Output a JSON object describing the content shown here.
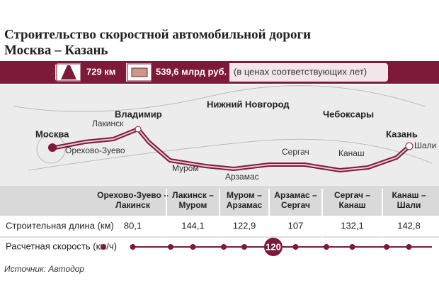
{
  "header": {
    "title": [
      "Строительство скоростной автомобильной дороги",
      "Москва – Казань"
    ]
  },
  "stats": {
    "length": "729 км",
    "cost": "539,6 млрд руб.",
    "cost_note": "(в ценах соответствующих лет)"
  },
  "map": {
    "cities": [
      "Москва",
      "Орехово-Зуево",
      "Лакинск",
      "Владимир",
      "Муром",
      "Нижний Новгород",
      "Арзамас",
      "Сергач",
      "Чебоксары",
      "Канаш",
      "Казань",
      "Шали"
    ]
  },
  "table": {
    "headers": [
      [
        "Орехово-Зуево –",
        "Лакинск"
      ],
      [
        "Лакинск –",
        "Муром"
      ],
      [
        "Муром –",
        "Арзамас"
      ],
      [
        "Арзамас –",
        "Сергач"
      ],
      [
        "Сергач –",
        "Канаш"
      ],
      [
        "Канаш –",
        "Шали"
      ]
    ],
    "rows": [
      {
        "label": "Строительная длина (км)",
        "values": [
          "80,1",
          "144,1",
          "122,9",
          "107",
          "132,1",
          "142,8"
        ]
      },
      {
        "label": "Расчетная скорость (км/ч)",
        "value": "120"
      }
    ]
  },
  "source": "Источник: Автодор"
}
